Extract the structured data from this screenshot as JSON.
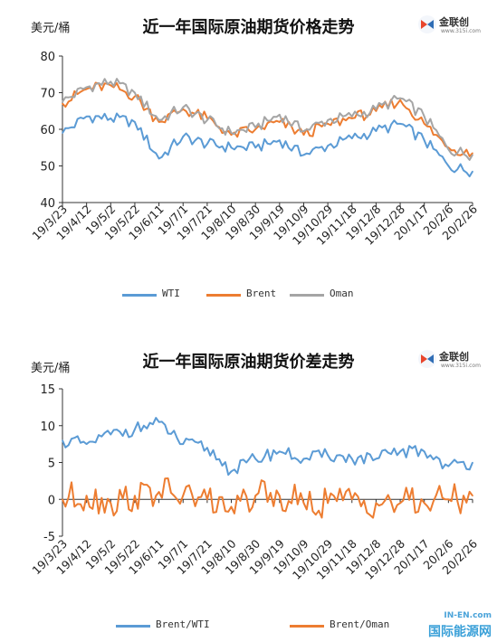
{
  "chart_data": [
    {
      "type": "line",
      "title": "近一年国际原油期货价格走势",
      "ylabel": "美元/桶",
      "ylim": [
        40,
        80
      ],
      "yticks": [
        40,
        50,
        60,
        70,
        80
      ],
      "x": [
        "19/3/23",
        "19/4/12",
        "19/5/2",
        "19/5/22",
        "19/6/11",
        "19/7/1",
        "19/7/21",
        "19/8/10",
        "19/8/30",
        "19/9/19",
        "19/10/9",
        "19/10/29",
        "19/11/18",
        "19/12/8",
        "19/12/28",
        "20/1/17",
        "20/2/6",
        "20/2/26"
      ],
      "series": [
        {
          "name": "WTI",
          "color": "#5b9bd5",
          "values": [
            59.0,
            63.5,
            63.0,
            62.0,
            52.0,
            58.0,
            56.0,
            55.0,
            55.0,
            57.0,
            53.0,
            55.5,
            57.5,
            59.5,
            61.5,
            57.0,
            50.0,
            48.5
          ]
        },
        {
          "name": "Brent",
          "color": "#ed7d31",
          "values": [
            67.0,
            71.0,
            72.0,
            69.0,
            62.0,
            65.5,
            63.0,
            58.5,
            60.0,
            62.0,
            58.5,
            61.5,
            63.0,
            65.0,
            68.0,
            61.5,
            55.0,
            53.5
          ]
        },
        {
          "name": "Oman",
          "color": "#a5a5a5",
          "values": [
            67.5,
            71.5,
            73.0,
            70.0,
            62.5,
            66.0,
            62.5,
            59.0,
            60.5,
            64.0,
            59.5,
            62.5,
            63.5,
            65.5,
            68.5,
            63.5,
            54.5,
            53.0
          ]
        }
      ]
    },
    {
      "type": "line",
      "title": "近一年国际原油期货价差走势",
      "ylabel": "美元/桶",
      "ylim": [
        -5,
        15
      ],
      "yticks": [
        -5,
        0,
        5,
        10,
        15
      ],
      "x": [
        "19/3/23",
        "19/4/12",
        "19/5/2",
        "19/5/22",
        "19/6/11",
        "19/7/1",
        "19/7/21",
        "19/8/10",
        "19/8/30",
        "19/9/19",
        "19/10/9",
        "19/10/29",
        "19/11/18",
        "19/12/8",
        "19/12/28",
        "20/1/17",
        "20/2/6",
        "20/2/26"
      ],
      "series": [
        {
          "name": "Brent/WTI",
          "color": "#5b9bd5",
          "values": [
            8.0,
            7.5,
            8.8,
            9.5,
            10.5,
            7.5,
            7.0,
            3.8,
            5.5,
            6.5,
            5.5,
            6.0,
            5.5,
            5.5,
            6.5,
            6.5,
            4.5,
            5.0
          ]
        },
        {
          "name": "Brent/Oman",
          "color": "#ed7d31",
          "values": [
            0.0,
            0.5,
            -0.5,
            0.5,
            1.0,
            0.5,
            0.0,
            -1.0,
            0.5,
            0.5,
            -0.5,
            -0.5,
            0.0,
            -0.5,
            -0.5,
            -0.5,
            0.0,
            0.5
          ]
        }
      ]
    }
  ],
  "logo": {
    "name": "金联创",
    "sub": "www.315i.com"
  },
  "watermark": {
    "top": "IN-EN.com",
    "main": "国际能源网"
  }
}
